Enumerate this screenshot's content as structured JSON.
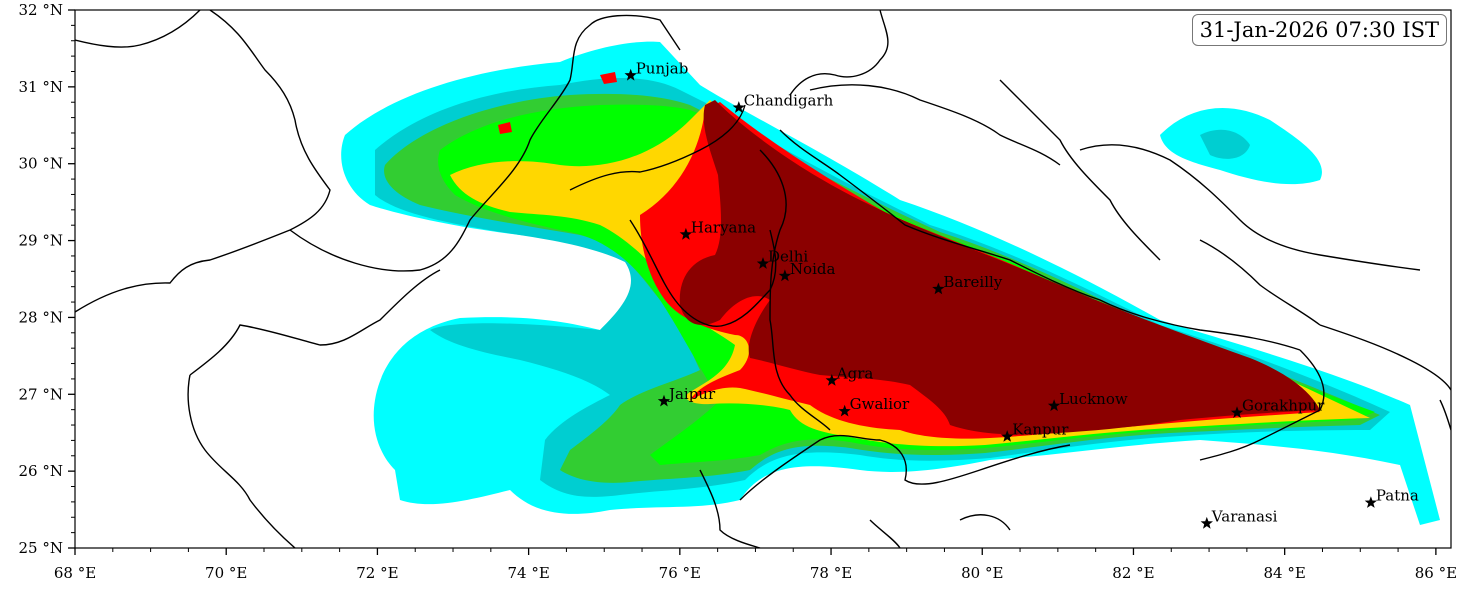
{
  "timestamp": "31-Jan-2026 07:30 IST",
  "axes": {
    "lon_min": 68,
    "lon_max": 86.2,
    "lat_min": 25,
    "lat_max": 32,
    "x_ticks": [
      {
        "value": 68,
        "label": "68 °E"
      },
      {
        "value": 70,
        "label": "70 °E"
      },
      {
        "value": 72,
        "label": "72 °E"
      },
      {
        "value": 74,
        "label": "74 °E"
      },
      {
        "value": 76,
        "label": "76 °E"
      },
      {
        "value": 78,
        "label": "78 °E"
      },
      {
        "value": 80,
        "label": "80 °E"
      },
      {
        "value": 82,
        "label": "82 °E"
      },
      {
        "value": 84,
        "label": "84 °E"
      },
      {
        "value": 86,
        "label": "86 °E"
      }
    ],
    "y_ticks": [
      {
        "value": 25,
        "label": "25 °N"
      },
      {
        "value": 26,
        "label": "26 °N"
      },
      {
        "value": 27,
        "label": "27 °N"
      },
      {
        "value": 28,
        "label": "28 °N"
      },
      {
        "value": 29,
        "label": "29 °N"
      },
      {
        "value": 30,
        "label": "30 °N"
      },
      {
        "value": 31,
        "label": "31 °N"
      },
      {
        "value": 32,
        "label": "32 °N"
      }
    ]
  },
  "cities": [
    {
      "name": "Punjab",
      "lon": 75.35,
      "lat": 31.15
    },
    {
      "name": "Chandigarh",
      "lon": 76.78,
      "lat": 30.73
    },
    {
      "name": "Haryana",
      "lon": 76.08,
      "lat": 29.08
    },
    {
      "name": "Delhi",
      "lon": 77.1,
      "lat": 28.7
    },
    {
      "name": "Noida",
      "lon": 77.39,
      "lat": 28.54
    },
    {
      "name": "Bareilly",
      "lon": 79.42,
      "lat": 28.37
    },
    {
      "name": "Agra",
      "lon": 78.01,
      "lat": 27.18
    },
    {
      "name": "Jaipur",
      "lon": 75.79,
      "lat": 26.91
    },
    {
      "name": "Gwalior",
      "lon": 78.18,
      "lat": 26.78
    },
    {
      "name": "Lucknow",
      "lon": 80.95,
      "lat": 26.85
    },
    {
      "name": "Gorakhpur",
      "lon": 83.37,
      "lat": 26.76
    },
    {
      "name": "Kanpur",
      "lon": 80.33,
      "lat": 26.45
    },
    {
      "name": "Varanasi",
      "lon": 82.97,
      "lat": 25.32
    },
    {
      "name": "Patna",
      "lon": 85.14,
      "lat": 25.59
    }
  ],
  "colors": {
    "level_cyan": "#00ffff",
    "level_darkcyan": "#00ced1",
    "level_green": "#32cd32",
    "level_brightgreen": "#00ff00",
    "level_yellow": "#ffd700",
    "level_red": "#ff0000",
    "level_maroon": "#8b0000"
  }
}
